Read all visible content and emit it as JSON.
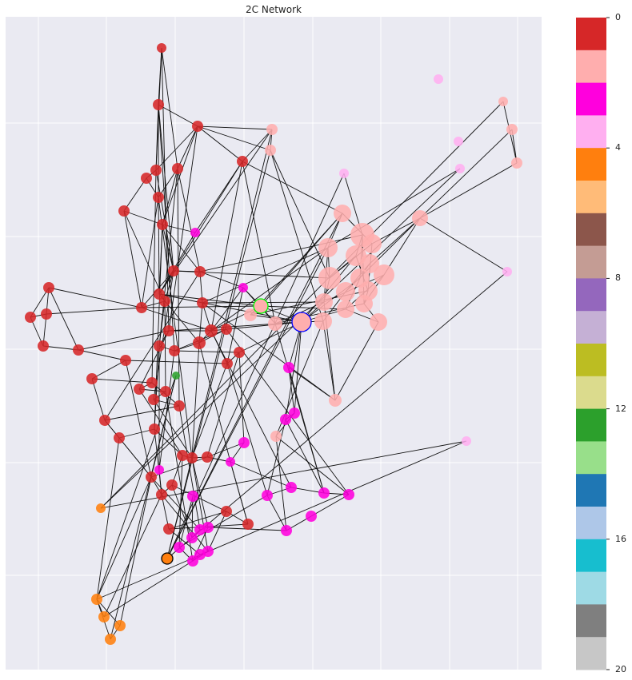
{
  "chart_data": {
    "type": "network",
    "title": "2C Network",
    "colorbar": {
      "ticks": [
        "0",
        "4",
        "8",
        "12",
        "16",
        "20"
      ],
      "vmin": 0,
      "vmax": 20,
      "colors": [
        "#d62728",
        "#ffaeae",
        "#ff00dd",
        "#ffaff0",
        "#ff7f0e",
        "#ffbb78",
        "#8c564b",
        "#c49c94",
        "#9467bd",
        "#c5b0d5",
        "#bcbd22",
        "#dbdb8d",
        "#2ca02c",
        "#98df8a",
        "#1f77b4",
        "#aec7e8",
        "#17becf",
        "#9edae5",
        "#7f7f7f",
        "#c7c7c7"
      ]
    },
    "grid": true,
    "highlighted_nodes": [
      {
        "community": 1,
        "outline": "#0000ff"
      },
      {
        "community": 1,
        "outline": "#00ff00"
      },
      {
        "community": 3,
        "outline": "#000000"
      }
    ]
  }
}
